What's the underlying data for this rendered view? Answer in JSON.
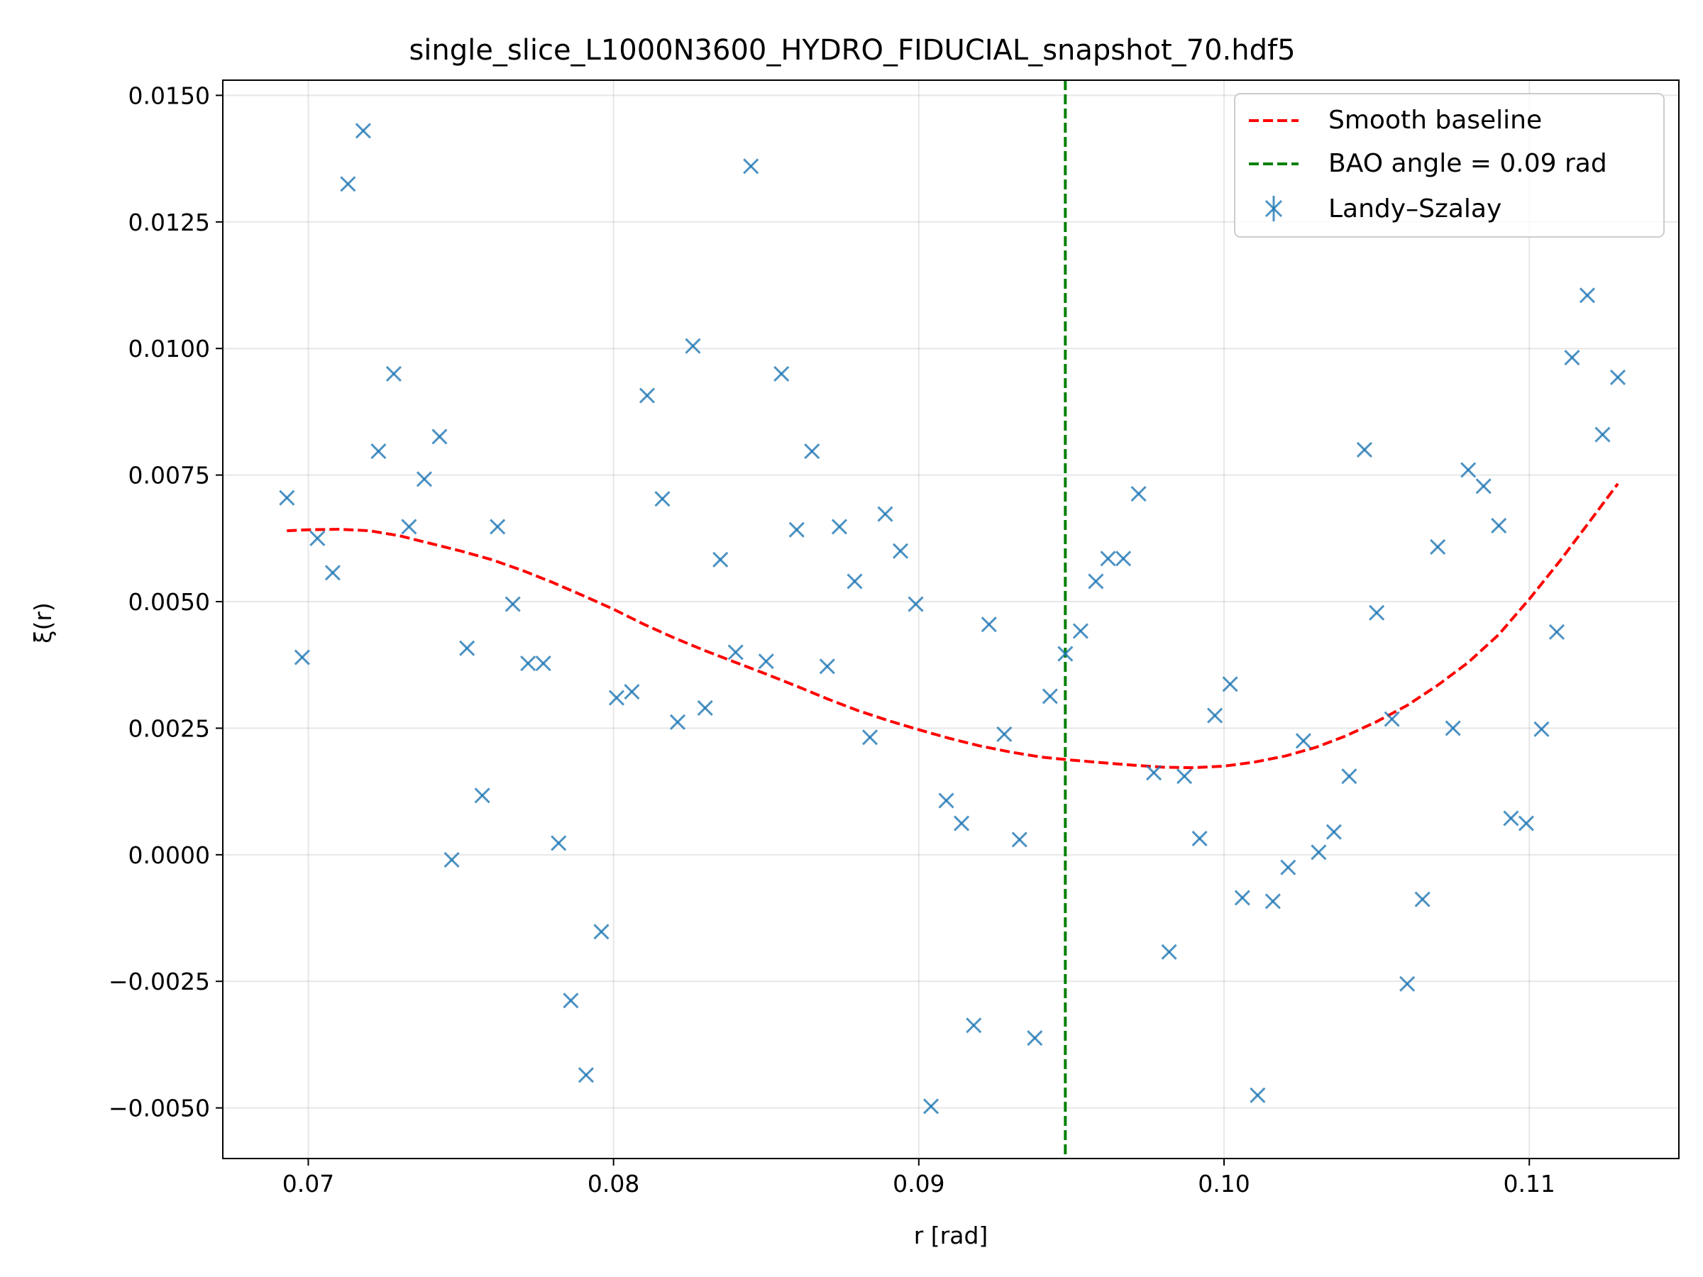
{
  "chart_data": {
    "type": "scatter",
    "title": "single_slice_L1000N3600_HYDRO_FIDUCIAL_snapshot_70.hdf5",
    "xlabel": "r [rad]",
    "ylabel": "ξ(r)",
    "xlim": [
      0.0672,
      0.1149
    ],
    "ylim": [
      -0.006,
      0.0153
    ],
    "xticks": [
      0.07,
      0.08,
      0.09,
      0.1,
      0.11
    ],
    "xtick_labels": [
      "0.07",
      "0.08",
      "0.09",
      "0.10",
      "0.11"
    ],
    "yticks": [
      -0.005,
      -0.0025,
      0.0,
      0.0025,
      0.005,
      0.0075,
      0.01,
      0.0125,
      0.015
    ],
    "ytick_labels": [
      "−0.0050",
      "−0.0025",
      "0.0000",
      "0.0025",
      "0.0050",
      "0.0075",
      "0.0100",
      "0.0125",
      "0.0150"
    ],
    "grid": true,
    "legend_position": "top-right",
    "legend": {
      "smooth": "Smooth baseline",
      "bao": "BAO angle = 0.09 rad",
      "points": "Landy–Szalay"
    },
    "colors": {
      "points": "#1f77b4",
      "baseline": "#ff0000",
      "bao_line": "#008000"
    },
    "bao_angle": 0.0948,
    "series": [
      {
        "name": "Landy–Szalay",
        "kind": "scatter",
        "x": [
          0.0693,
          0.0698,
          0.0703,
          0.0708,
          0.0713,
          0.0718,
          0.0723,
          0.0728,
          0.0733,
          0.0738,
          0.0743,
          0.0747,
          0.0752,
          0.0757,
          0.0762,
          0.0767,
          0.0772,
          0.0777,
          0.0782,
          0.0786,
          0.0791,
          0.0796,
          0.0801,
          0.0806,
          0.0811,
          0.0816,
          0.0821,
          0.0826,
          0.083,
          0.0835,
          0.084,
          0.0845,
          0.085,
          0.0855,
          0.086,
          0.0865,
          0.087,
          0.0874,
          0.0879,
          0.0884,
          0.0889,
          0.0894,
          0.0899,
          0.0904,
          0.0909,
          0.0914,
          0.0918,
          0.0923,
          0.0928,
          0.0933,
          0.0938,
          0.0943,
          0.0948,
          0.0953,
          0.0958,
          0.0962,
          0.0967,
          0.0972,
          0.0977,
          0.0982,
          0.0987,
          0.0992,
          0.0997,
          0.1002,
          0.1006,
          0.1011,
          0.1016,
          0.1021,
          0.1026,
          0.1031,
          0.1036,
          0.1041,
          0.1046,
          0.105,
          0.1055,
          0.106,
          0.1065,
          0.107,
          0.1075,
          0.108,
          0.1085,
          0.109,
          0.1094,
          0.1099,
          0.1104,
          0.1109,
          0.1114,
          0.1119,
          0.1124,
          0.1129
        ],
        "y": [
          0.00705,
          0.0039,
          0.00625,
          0.00557,
          0.01325,
          0.0143,
          0.00797,
          0.0095,
          0.00648,
          0.00742,
          0.00826,
          -0.0001,
          0.00408,
          0.00117,
          0.00648,
          0.00495,
          0.00378,
          0.00378,
          0.00023,
          -0.00288,
          -0.00435,
          -0.00152,
          0.0031,
          0.00322,
          0.00907,
          0.00703,
          0.00262,
          0.01005,
          0.0029,
          0.00583,
          0.004,
          0.0136,
          0.00382,
          0.0095,
          0.00642,
          0.00797,
          0.00372,
          0.00648,
          0.0054,
          0.00232,
          0.00673,
          0.006,
          0.00495,
          -0.00497,
          0.00107,
          0.00062,
          -0.00337,
          0.00455,
          0.00238,
          0.0003,
          -0.00362,
          0.00313,
          0.00397,
          0.00442,
          0.0054,
          0.00585,
          0.00585,
          0.00713,
          0.00162,
          -0.00192,
          0.00155,
          0.00032,
          0.00275,
          0.00337,
          -0.00085,
          -0.00475,
          -0.00092,
          -0.00025,
          0.00225,
          5e-05,
          0.00045,
          0.00155,
          0.008,
          0.00478,
          0.00268,
          -0.00255,
          -0.00088,
          0.00608,
          0.0025,
          0.0076,
          0.00728,
          0.0065,
          0.00072,
          0.00062,
          0.00248,
          0.0044,
          0.00982,
          0.01105,
          0.0083,
          0.00943
        ]
      },
      {
        "name": "Smooth baseline",
        "kind": "line",
        "x": [
          0.0693,
          0.07,
          0.071,
          0.072,
          0.073,
          0.074,
          0.075,
          0.076,
          0.077,
          0.078,
          0.079,
          0.08,
          0.081,
          0.082,
          0.083,
          0.084,
          0.085,
          0.086,
          0.087,
          0.088,
          0.089,
          0.09,
          0.091,
          0.092,
          0.093,
          0.094,
          0.095,
          0.096,
          0.097,
          0.098,
          0.099,
          0.1,
          0.101,
          0.102,
          0.103,
          0.104,
          0.105,
          0.106,
          0.107,
          0.108,
          0.109,
          0.11,
          0.111,
          0.112,
          0.1129
        ],
        "y": [
          0.0064,
          0.00642,
          0.00643,
          0.0064,
          0.0063,
          0.00615,
          0.006,
          0.00583,
          0.00562,
          0.00538,
          0.00512,
          0.00485,
          0.00455,
          0.00428,
          0.00403,
          0.0038,
          0.00357,
          0.00333,
          0.00308,
          0.00285,
          0.00265,
          0.00247,
          0.0023,
          0.00215,
          0.00203,
          0.00193,
          0.00187,
          0.00182,
          0.00177,
          0.00173,
          0.00172,
          0.00175,
          0.00183,
          0.00195,
          0.00212,
          0.00235,
          0.00263,
          0.00295,
          0.00335,
          0.0038,
          0.00435,
          0.00505,
          0.0058,
          0.0066,
          0.00733
        ]
      }
    ]
  }
}
